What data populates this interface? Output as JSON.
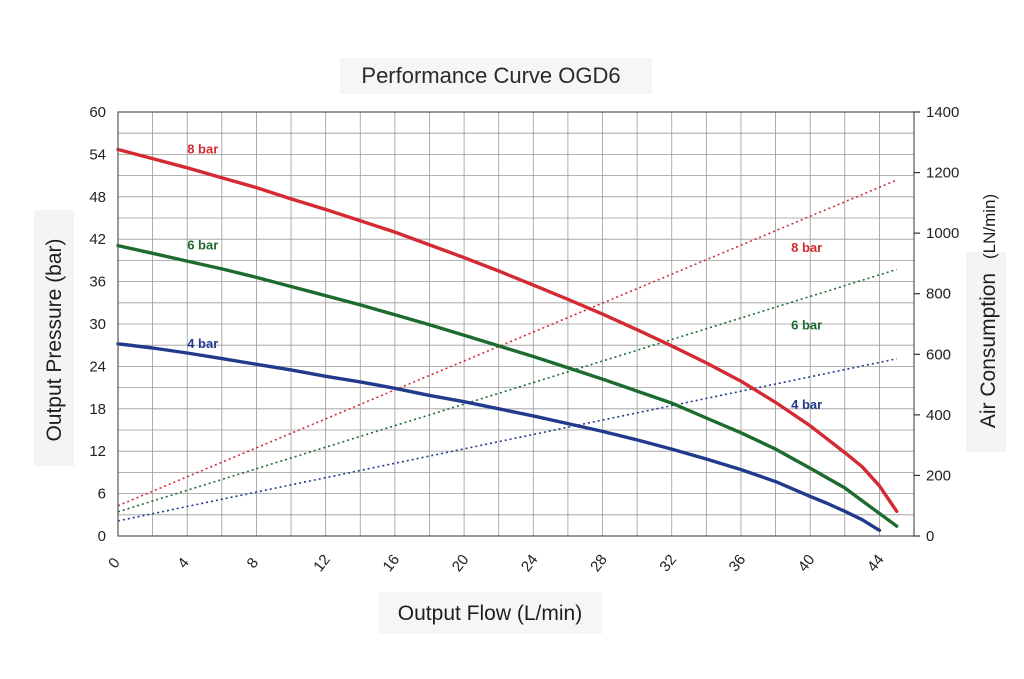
{
  "chart_data": {
    "type": "line",
    "title": "Performance Curve OGD6",
    "xlabel": "Output Flow (L/min)",
    "ylabel": "Output Pressure (bar)",
    "y2label_main": "Air Consumption",
    "y2label_unit": "(LN/min)",
    "xlim": [
      0,
      46
    ],
    "ylim": [
      0,
      60
    ],
    "y2lim": [
      0,
      1400
    ],
    "x_ticks": [
      "0",
      "4",
      "8",
      "12",
      "16",
      "20",
      "24",
      "28",
      "32",
      "36",
      "40",
      "44"
    ],
    "y_ticks": [
      "0",
      "6",
      "12",
      "18",
      "24",
      "30",
      "36",
      "42",
      "48",
      "54",
      "60"
    ],
    "y2_ticks": [
      "0",
      "200",
      "400",
      "600",
      "800",
      "1000",
      "1200",
      "1400"
    ],
    "grid": true,
    "pressure_series": [
      {
        "name": "8 bar",
        "label": "8 bar",
        "color": "#d42a32",
        "x": [
          0,
          2,
          4,
          6,
          8,
          10,
          12,
          14,
          16,
          18,
          20,
          22,
          24,
          26,
          28,
          30,
          32,
          34,
          36,
          38,
          40,
          42,
          43,
          44,
          45
        ],
        "y": [
          54.7,
          53.4,
          52.1,
          50.7,
          49.3,
          47.7,
          46.2,
          44.6,
          43.0,
          41.2,
          39.4,
          37.5,
          35.5,
          33.5,
          31.4,
          29.2,
          26.9,
          24.5,
          21.9,
          18.9,
          15.6,
          11.8,
          9.8,
          7.1,
          3.5
        ]
      },
      {
        "name": "6 bar",
        "label": "6 bar",
        "color": "#1e6b30",
        "x": [
          0,
          2,
          4,
          6,
          8,
          10,
          12,
          14,
          16,
          18,
          20,
          22,
          24,
          26,
          28,
          30,
          32,
          34,
          36,
          38,
          40,
          42,
          43,
          44,
          45
        ],
        "y": [
          41.1,
          40.0,
          38.9,
          37.8,
          36.6,
          35.3,
          34.0,
          32.7,
          31.3,
          29.9,
          28.4,
          26.9,
          25.4,
          23.8,
          22.2,
          20.5,
          18.8,
          16.7,
          14.6,
          12.3,
          9.6,
          6.8,
          5.0,
          3.2,
          1.4
        ]
      },
      {
        "name": "4 bar",
        "label": "4 bar",
        "color": "#223a8c",
        "x": [
          0,
          2,
          4,
          6,
          8,
          10,
          12,
          14,
          16,
          18,
          20,
          22,
          24,
          26,
          28,
          30,
          32,
          34,
          36,
          38,
          40,
          41,
          42,
          43,
          44
        ],
        "y": [
          27.2,
          26.6,
          25.9,
          25.1,
          24.3,
          23.5,
          22.6,
          21.8,
          20.9,
          19.9,
          19.0,
          18.0,
          17.0,
          15.9,
          14.8,
          13.6,
          12.3,
          10.9,
          9.4,
          7.7,
          5.6,
          4.6,
          3.5,
          2.3,
          0.8
        ]
      }
    ],
    "air_consumption_series": [
      {
        "name": "8 bar",
        "label": "8 bar",
        "color": "#d42a32",
        "x": [
          0,
          45
        ],
        "y": [
          100,
          1175
        ]
      },
      {
        "name": "6 bar",
        "label": "6 bar",
        "color": "#1e6b30",
        "x": [
          0,
          45
        ],
        "y": [
          80,
          880
        ]
      },
      {
        "name": "4 bar",
        "label": "4 bar",
        "color": "#223a8c",
        "x": [
          0,
          45
        ],
        "y": [
          50,
          585
        ]
      }
    ]
  }
}
